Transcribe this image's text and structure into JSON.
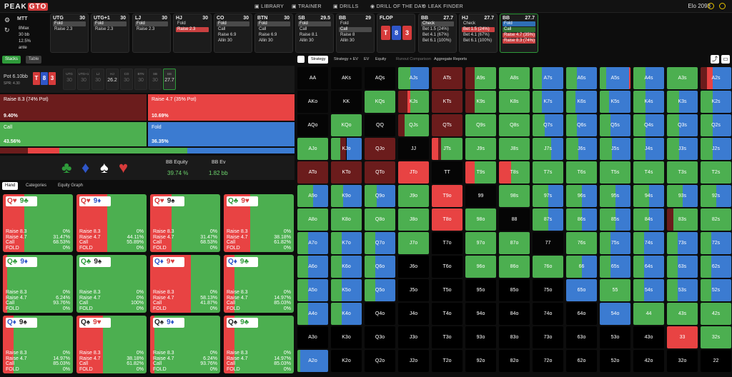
{
  "nav": {
    "logo_a": "PEAK",
    "logo_b": "GTO",
    "items": [
      "LIBRARY",
      "TRAINER",
      "DRILLS",
      "DRILL OF THE DAY",
      "LEAK FINDER"
    ],
    "elo": "Elo 2093"
  },
  "game": {
    "type": "MTT",
    "lines": [
      "8Max",
      "30 bb",
      "12.5% ante"
    ]
  },
  "positions": [
    {
      "name": "UTG",
      "stack": "30",
      "actions": [
        {
          "t": "Fold",
          "s": "sel"
        },
        {
          "t": "Raise 2.3",
          "s": ""
        }
      ]
    },
    {
      "name": "UTG+1",
      "stack": "30",
      "actions": [
        {
          "t": "Fold",
          "s": "sel"
        },
        {
          "t": "Raise 2.3",
          "s": ""
        }
      ]
    },
    {
      "name": "LJ",
      "stack": "30",
      "actions": [
        {
          "t": "Fold",
          "s": "sel"
        },
        {
          "t": "Raise 2.3",
          "s": ""
        }
      ]
    },
    {
      "name": "HJ",
      "stack": "30",
      "actions": [
        {
          "t": "Fold",
          "s": ""
        },
        {
          "t": "Raise 2.3",
          "s": "selr"
        }
      ]
    },
    {
      "name": "CO",
      "stack": "30",
      "actions": [
        {
          "t": "Fold",
          "s": "sel"
        },
        {
          "t": "Call",
          "s": ""
        },
        {
          "t": "Raise 6.9",
          "s": ""
        },
        {
          "t": "Allin 30",
          "s": ""
        }
      ]
    },
    {
      "name": "BTN",
      "stack": "30",
      "actions": [
        {
          "t": "Fold",
          "s": "sel"
        },
        {
          "t": "Call",
          "s": ""
        },
        {
          "t": "Raise 6.9",
          "s": ""
        },
        {
          "t": "Allin 30",
          "s": ""
        }
      ]
    },
    {
      "name": "SB",
      "stack": "29.5",
      "actions": [
        {
          "t": "Fold",
          "s": "sel"
        },
        {
          "t": "Call",
          "s": ""
        },
        {
          "t": "Raise 8.1",
          "s": ""
        },
        {
          "t": "Allin 30",
          "s": ""
        }
      ]
    },
    {
      "name": "BB",
      "stack": "29",
      "actions": [
        {
          "t": "Fold",
          "s": ""
        },
        {
          "t": "Call",
          "s": "sel"
        },
        {
          "t": "Raise 8",
          "s": ""
        },
        {
          "t": "Allin 30",
          "s": ""
        }
      ]
    },
    {
      "name": "FLOP",
      "stack": "",
      "actions": []
    },
    {
      "name": "BB",
      "stack": "27.7",
      "actions": [
        {
          "t": "Check",
          "s": "sel"
        },
        {
          "t": "Bet 1.5 (24%)",
          "s": ""
        },
        {
          "t": "Bet 4.1 (67%)",
          "s": ""
        },
        {
          "t": "Bet 6.1 (100%)",
          "s": ""
        }
      ]
    },
    {
      "name": "HJ",
      "stack": "27.7",
      "actions": [
        {
          "t": "Check",
          "s": ""
        },
        {
          "t": "Bet 1.5 (24%)",
          "s": "selr"
        },
        {
          "t": "Bet 4.1 (67%)",
          "s": ""
        },
        {
          "t": "Bet 6.1 (100%)",
          "s": ""
        }
      ]
    },
    {
      "name": "BB",
      "stack": "27.7",
      "actions": [
        {
          "t": "Fold",
          "s": "selb"
        },
        {
          "t": "Call",
          "s": "selg"
        },
        {
          "t": "Raise 4.7 (35%)",
          "s": "selr"
        },
        {
          "t": "Raise 8.3 (74%)",
          "s": "selr"
        }
      ]
    }
  ],
  "flop": [
    {
      "r": "T",
      "c": "#d63b3b"
    },
    {
      "r": "8",
      "c": "#2f56c8"
    },
    {
      "r": "3",
      "c": "#d63b3b"
    }
  ],
  "left": {
    "tabs": [
      "Stacks",
      "Table"
    ],
    "pot_label": "Pot",
    "pot": "6.10bb",
    "spr": "SPR: 4.30",
    "seats": [
      {
        "n": "UTG",
        "s": "30"
      },
      {
        "n": "UTG+1",
        "s": "30"
      },
      {
        "n": "LJ",
        "s": "30"
      },
      {
        "n": "HJ",
        "s": "26.2"
      },
      {
        "n": "CO",
        "s": "30"
      },
      {
        "n": "BTN",
        "s": "30"
      },
      {
        "n": "SB",
        "s": "30"
      },
      {
        "n": "BB",
        "s": "27.7"
      }
    ],
    "actions": [
      {
        "label": "Raise 8.3 (74% Pot)",
        "pct": "9.40%",
        "color": "#6b1c1c"
      },
      {
        "label": "Raise 4.7 (35% Pot)",
        "pct": "10.69%",
        "color": "#e84343"
      },
      {
        "label": "Call",
        "pct": "43.56%",
        "color": "#4caf50"
      },
      {
        "label": "Fold",
        "pct": "36.35%",
        "color": "#3b7bd1"
      }
    ],
    "equity_label": "BB Equity",
    "equity": "39.74 %",
    "ev_label": "BB Ev",
    "ev": "1.82 bb",
    "subtabs": [
      "Hand",
      "Categories",
      "Equity Graph"
    ],
    "row_labels": [
      "Raise 8.3",
      "Raise 4.7",
      "Call",
      "FOLD"
    ],
    "hands": [
      {
        "r1": "Q",
        "s1": "♥",
        "c1": "#d63b3b",
        "r2": "9",
        "s2": "♣",
        "c2": "#2e9a3a",
        "v": [
          "0%",
          "31.47%",
          "68.53%",
          "0%"
        ],
        "red": 0.31
      },
      {
        "r1": "Q",
        "s1": "♥",
        "c1": "#d63b3b",
        "r2": "9",
        "s2": "♦",
        "c2": "#2f56c8",
        "v": [
          "0%",
          "44.11%",
          "55.89%",
          "0%"
        ],
        "red": 0.44
      },
      {
        "r1": "Q",
        "s1": "♥",
        "c1": "#d63b3b",
        "r2": "9",
        "s2": "♠",
        "c2": "#222",
        "v": [
          "0%",
          "31.47%",
          "68.53%",
          "0%"
        ],
        "red": 0.31
      },
      {
        "r1": "Q",
        "s1": "♣",
        "c1": "#2e9a3a",
        "r2": "9",
        "s2": "♥",
        "c2": "#d63b3b",
        "v": [
          "0%",
          "38.18%",
          "61.82%",
          "0%"
        ],
        "red": 0.38
      },
      {
        "r1": "Q",
        "s1": "♣",
        "c1": "#2e9a3a",
        "r2": "9",
        "s2": "♦",
        "c2": "#2f56c8",
        "v": [
          "0%",
          "6.24%",
          "93.76%",
          "0%"
        ],
        "red": 0.06
      },
      {
        "r1": "Q",
        "s1": "♣",
        "c1": "#2e9a3a",
        "r2": "9",
        "s2": "♠",
        "c2": "#222",
        "v": [
          "0%",
          "0%",
          "100%",
          "0%"
        ],
        "red": 0
      },
      {
        "r1": "Q",
        "s1": "♦",
        "c1": "#2f56c8",
        "r2": "9",
        "s2": "♥",
        "c2": "#d63b3b",
        "v": [
          "0%",
          "58.13%",
          "41.87%",
          "0%"
        ],
        "red": 0.58
      },
      {
        "r1": "Q",
        "s1": "♦",
        "c1": "#2f56c8",
        "r2": "9",
        "s2": "♣",
        "c2": "#2e9a3a",
        "v": [
          "0%",
          "14.97%",
          "85.03%",
          "0%"
        ],
        "red": 0.15
      },
      {
        "r1": "Q",
        "s1": "♦",
        "c1": "#2f56c8",
        "r2": "9",
        "s2": "♠",
        "c2": "#222",
        "v": [
          "0%",
          "14.97%",
          "85.03%",
          "0%"
        ],
        "red": 0.15
      },
      {
        "r1": "Q",
        "s1": "♠",
        "c1": "#222",
        "r2": "9",
        "s2": "♥",
        "c2": "#d63b3b",
        "v": [
          "0%",
          "38.18%",
          "61.82%",
          "0%"
        ],
        "red": 0.38
      },
      {
        "r1": "Q",
        "s1": "♠",
        "c1": "#222",
        "r2": "9",
        "s2": "♦",
        "c2": "#2f56c8",
        "v": [
          "0%",
          "6.24%",
          "93.76%",
          "0%"
        ],
        "red": 0.06
      },
      {
        "r1": "Q",
        "s1": "♠",
        "c1": "#222",
        "r2": "9",
        "s2": "♣",
        "c2": "#2e9a3a",
        "v": [
          "0%",
          "14.97%",
          "85.03%",
          "0%"
        ],
        "red": 0.15
      }
    ]
  },
  "right": {
    "tabs": [
      "Strategy",
      "Strategy + EV",
      "EV",
      "Equity",
      "Runout Comparison",
      "Aggregate Reports"
    ]
  },
  "ranks": [
    "A",
    "K",
    "Q",
    "J",
    "T",
    "9",
    "8",
    "7",
    "6",
    "5",
    "4",
    "3",
    "2"
  ],
  "colors": {
    "dark": "#6b1c1c",
    "red": "#e84343",
    "green": "#4caf50",
    "blue": "#3b7bd1"
  }
}
